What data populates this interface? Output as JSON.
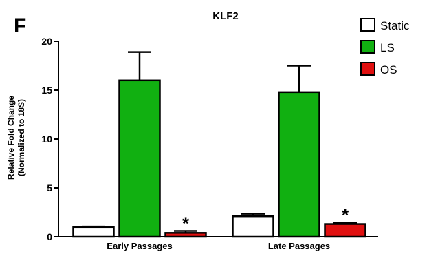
{
  "panel_label": "F",
  "chart_data": {
    "type": "bar",
    "title": "KLF2",
    "xlabel": "",
    "ylabel_lines": [
      "Relative Fold Change",
      "(Normalized to 18S)"
    ],
    "ylim": [
      0,
      20
    ],
    "yticks": [
      0,
      5,
      10,
      15,
      20
    ],
    "categories": [
      "Early Passages",
      "Late Passages"
    ],
    "series": [
      {
        "name": "Static",
        "color": "#ffffff",
        "values": [
          1.0,
          2.1
        ],
        "errors": [
          0.05,
          0.25
        ]
      },
      {
        "name": "LS",
        "color": "#11b011",
        "values": [
          16.0,
          14.8
        ],
        "errors": [
          2.9,
          2.7
        ]
      },
      {
        "name": "OS",
        "color": "#e01010",
        "values": [
          0.4,
          1.3
        ],
        "errors": [
          0.2,
          0.15
        ]
      }
    ],
    "annotations": [
      {
        "text": "*",
        "category": "Early Passages",
        "series": "OS"
      },
      {
        "text": "*",
        "category": "Late Passages",
        "series": "OS"
      }
    ],
    "legend": "top-right",
    "grid": false
  }
}
